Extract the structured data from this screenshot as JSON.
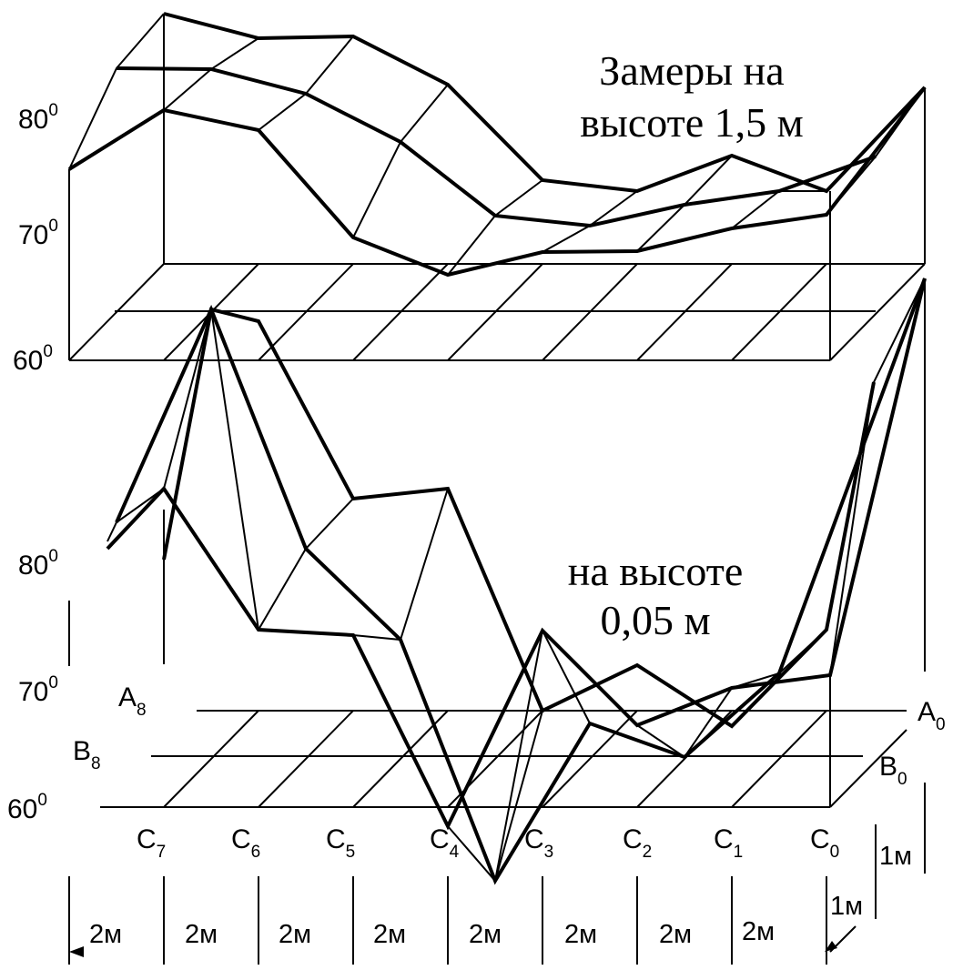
{
  "titles": {
    "upper_line1": "Замеры на",
    "upper_line2": "высоте 1,5 м",
    "lower_line1": "на высоте",
    "lower_line2": "0,05 м"
  },
  "upper_axis_labels": {
    "t80": {
      "base": "80",
      "sup": "0"
    },
    "t70": {
      "base": "70",
      "sup": "0"
    },
    "t60": {
      "base": "60",
      "sup": "0"
    }
  },
  "lower_axis_labels": {
    "t80": {
      "base": "80",
      "sup": "0"
    },
    "t70": {
      "base": "70",
      "sup": "0"
    },
    "t60": {
      "base": "60",
      "sup": "0"
    }
  },
  "row_labels": {
    "A8": {
      "base": "A",
      "sub": "8"
    },
    "B8": {
      "base": "B",
      "sub": "8"
    },
    "A0": {
      "base": "A",
      "sub": "0"
    },
    "B0": {
      "base": "B",
      "sub": "0"
    }
  },
  "column_labels": [
    {
      "base": "C",
      "sub": "7"
    },
    {
      "base": "C",
      "sub": "6"
    },
    {
      "base": "C",
      "sub": "5"
    },
    {
      "base": "C",
      "sub": "4"
    },
    {
      "base": "C",
      "sub": "3"
    },
    {
      "base": "C",
      "sub": "2"
    },
    {
      "base": "C",
      "sub": "1"
    },
    {
      "base": "C",
      "sub": "0"
    }
  ],
  "dimension_labels": {
    "spacing": [
      "2м",
      "2м",
      "2м",
      "2м",
      "2м",
      "2м",
      "2м",
      "2м"
    ],
    "depth_1": "1м",
    "depth_2": "1м"
  }
}
